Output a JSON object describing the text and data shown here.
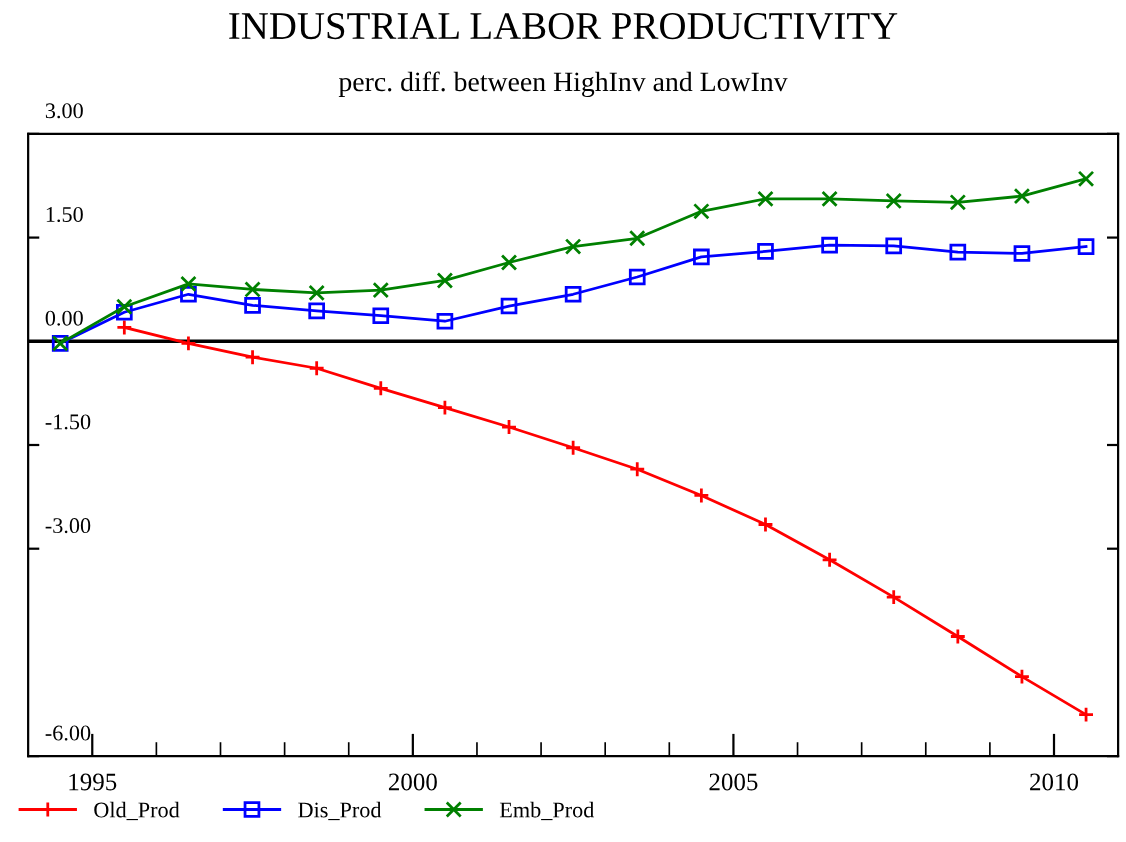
{
  "chart_data": {
    "type": "line",
    "title": "INDUSTRIAL LABOR PRODUCTIVITY",
    "subtitle": "perc. diff. between HighInv and LowInv",
    "x": [
      1994.5,
      1995.5,
      1996.5,
      1997.5,
      1998.5,
      1999.5,
      2000.5,
      2001.5,
      2002.5,
      2003.5,
      2004.5,
      2005.5,
      2006.5,
      2007.5,
      2008.5,
      2009.5,
      2010.5
    ],
    "series": [
      {
        "name": "Old_Prod",
        "color": "#ff0000",
        "marker": "plus",
        "values": [
          null,
          0.2,
          -0.03,
          -0.23,
          -0.39,
          -0.68,
          -0.96,
          -1.24,
          -1.54,
          -1.85,
          -2.23,
          -2.65,
          -3.16,
          -3.7,
          -4.27,
          -4.85,
          -5.4
        ]
      },
      {
        "name": "Dis_Prod",
        "color": "#0000ff",
        "marker": "square",
        "values": [
          -0.03,
          0.42,
          0.68,
          0.52,
          0.44,
          0.37,
          0.29,
          0.51,
          0.68,
          0.93,
          1.22,
          1.3,
          1.39,
          1.38,
          1.29,
          1.27,
          1.37
        ]
      },
      {
        "name": "Emb_Prod",
        "color": "#008000",
        "marker": "cross",
        "values": [
          -0.03,
          0.5,
          0.83,
          0.75,
          0.7,
          0.74,
          0.88,
          1.14,
          1.37,
          1.49,
          1.88,
          2.06,
          2.06,
          2.03,
          2.01,
          2.1,
          2.35
        ]
      }
    ],
    "xlim": [
      1994,
      2011
    ],
    "xticks": [
      1995,
      {
        "value": 1996,
        "label": null
      },
      {
        "value": 1997,
        "label": null
      },
      {
        "value": 1998,
        "label": null
      },
      {
        "value": 1999,
        "label": null
      },
      2000,
      {
        "value": 2001,
        "label": null
      },
      {
        "value": 2002,
        "label": null
      },
      {
        "value": 2003,
        "label": null
      },
      {
        "value": 2004,
        "label": null
      },
      2005,
      {
        "value": 2006,
        "label": null
      },
      {
        "value": 2007,
        "label": null
      },
      {
        "value": 2008,
        "label": null
      },
      {
        "value": 2009,
        "label": null
      },
      2010
    ],
    "ylim": [
      -6,
      3
    ],
    "yticks": [
      {
        "value": 3,
        "label": "3.00"
      },
      {
        "value": 1.5,
        "label": "1.50"
      },
      {
        "value": 0,
        "label": "0.00"
      },
      {
        "value": -1.5,
        "label": "-1.50"
      },
      {
        "value": -3,
        "label": "-3.00"
      },
      {
        "value": -6,
        "label": "-6.00"
      }
    ],
    "ref_lines": [
      {
        "axis": "y",
        "value": 0,
        "label": null,
        "color": "#000000"
      }
    ],
    "legend": "bottom left",
    "line_style": "solid"
  }
}
